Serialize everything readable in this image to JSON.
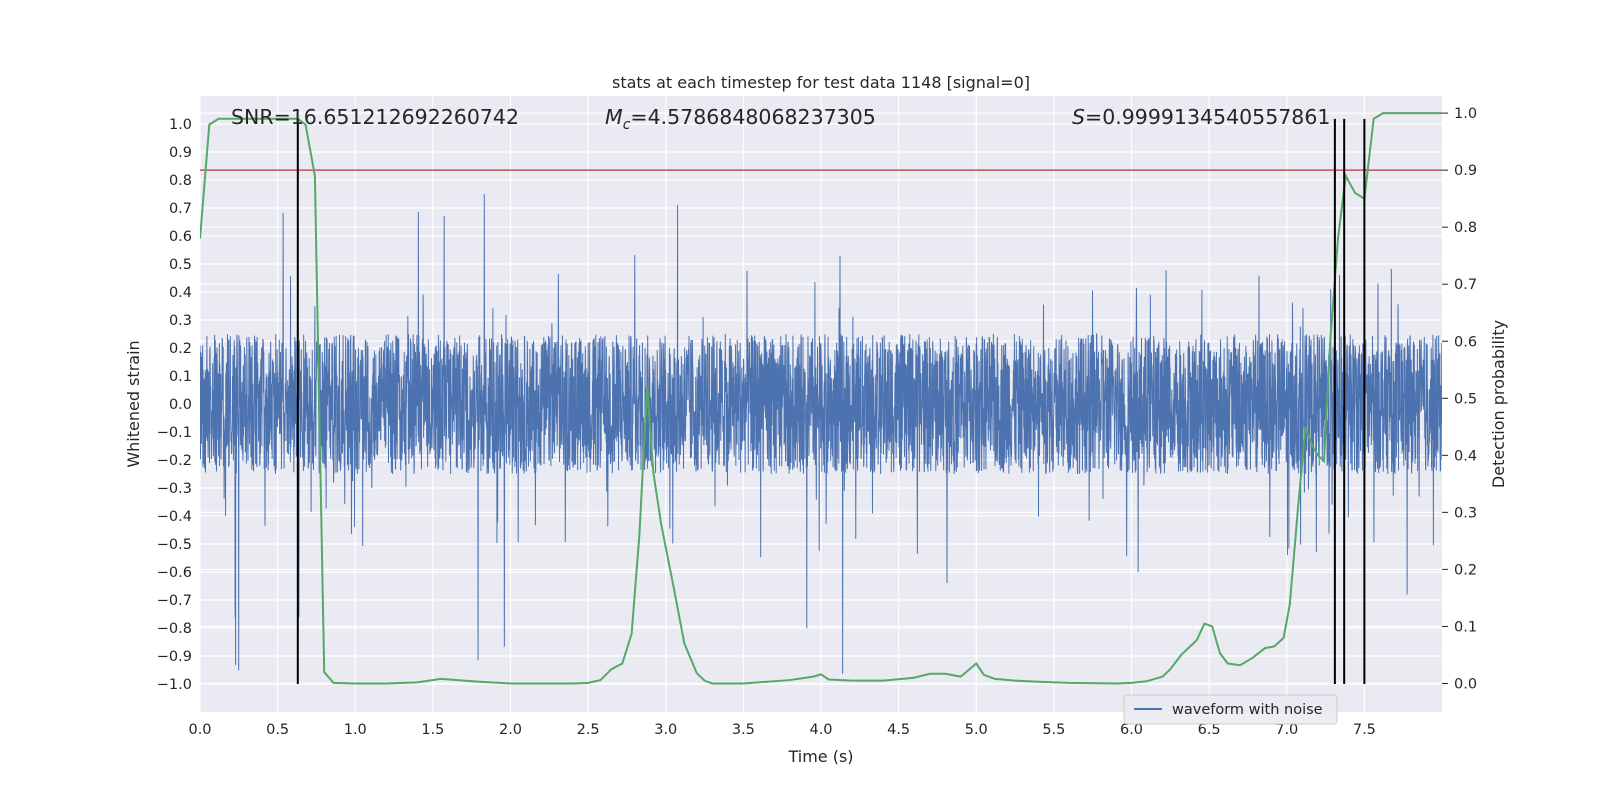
{
  "chart_data": {
    "type": "line",
    "title": "stats at each timestep for test data 1148 [signal=0]",
    "xlabel": "Time (s)",
    "ylabel": "Whitened strain",
    "y2label": "Detection probability",
    "xlim": [
      0,
      8.0
    ],
    "ylim": [
      -1.1,
      1.1
    ],
    "y2lim": [
      -0.05,
      1.03
    ],
    "xticks": [
      "0.0",
      "0.5",
      "1.0",
      "1.5",
      "2.0",
      "2.5",
      "3.0",
      "3.5",
      "4.0",
      "4.5",
      "5.0",
      "5.5",
      "6.0",
      "6.5",
      "7.0",
      "7.5"
    ],
    "yticks": [
      "1.0",
      "0.9",
      "0.8",
      "0.7",
      "0.6",
      "0.5",
      "0.4",
      "0.3",
      "0.2",
      "0.1",
      "0.0",
      "−0.1",
      "−0.2",
      "−0.3",
      "−0.4",
      "−0.5",
      "−0.6",
      "−0.7",
      "−0.8",
      "−0.9",
      "−1.0"
    ],
    "y2ticks": [
      "1.0",
      "0.9",
      "0.8",
      "0.7",
      "0.6",
      "0.5",
      "0.4",
      "0.3",
      "0.2",
      "0.1",
      "0.0"
    ],
    "grid": true,
    "legend": {
      "placement": "lower-right",
      "entries": [
        "waveform with noise"
      ]
    },
    "annotations": {
      "snr": "SNR=16.651212692260742",
      "mc_symbol": "M",
      "mc_sub": "c",
      "mc_value": "=4.5786848068237305",
      "s_symbol": "S",
      "s_value": "=0.9999134540557861"
    },
    "threshold": 0.9,
    "vlines": [
      0.63,
      7.31,
      7.37,
      7.5
    ],
    "vline_ymin": -1.0,
    "vline_ymax": 0.99,
    "strain": {
      "name": "waveform with noise",
      "duration": 8.0,
      "typical_amplitude": 0.25,
      "max_spike": 0.78,
      "min_spike": -1.0
    },
    "probability": {
      "x": [
        0.0,
        0.06,
        0.12,
        0.2,
        0.3,
        0.4,
        0.5,
        0.6,
        0.63,
        0.68,
        0.74,
        0.8,
        0.86,
        1.0,
        1.2,
        1.4,
        1.55,
        1.8,
        2.0,
        2.2,
        2.4,
        2.5,
        2.58,
        2.65,
        2.72,
        2.78,
        2.83,
        2.88,
        2.92,
        2.97,
        3.05,
        3.12,
        3.2,
        3.25,
        3.3,
        3.5,
        3.8,
        3.95,
        4.0,
        4.05,
        4.2,
        4.4,
        4.6,
        4.7,
        4.8,
        4.9,
        5.0,
        5.05,
        5.12,
        5.25,
        5.4,
        5.6,
        5.9,
        6.0,
        6.1,
        6.2,
        6.25,
        6.32,
        6.42,
        6.47,
        6.52,
        6.57,
        6.62,
        6.7,
        6.78,
        6.86,
        6.92,
        6.98,
        7.02,
        7.07,
        7.12,
        7.16,
        7.2,
        7.24,
        7.28,
        7.33,
        7.38,
        7.44,
        7.5,
        7.56,
        7.62,
        7.7,
        8.0
      ],
      "y": [
        0.78,
        0.98,
        0.99,
        0.99,
        0.99,
        0.99,
        0.99,
        0.99,
        0.99,
        0.98,
        0.89,
        0.02,
        0.001,
        0.0,
        0.0,
        0.002,
        0.008,
        0.003,
        0.0,
        0.0,
        0.0,
        0.001,
        0.006,
        0.025,
        0.035,
        0.087,
        0.26,
        0.52,
        0.37,
        0.28,
        0.17,
        0.07,
        0.018,
        0.005,
        0.0,
        0.0,
        0.006,
        0.012,
        0.016,
        0.007,
        0.005,
        0.005,
        0.01,
        0.017,
        0.017,
        0.012,
        0.035,
        0.015,
        0.008,
        0.005,
        0.003,
        0.001,
        0.0,
        0.001,
        0.004,
        0.012,
        0.025,
        0.05,
        0.076,
        0.105,
        0.1,
        0.053,
        0.035,
        0.032,
        0.045,
        0.062,
        0.065,
        0.08,
        0.14,
        0.3,
        0.45,
        0.42,
        0.4,
        0.39,
        0.6,
        0.78,
        0.89,
        0.86,
        0.85,
        0.99,
        1.0,
        1.0,
        1.0
      ]
    },
    "colors": {
      "strain": "#4c72b0",
      "probability": "#55a868",
      "threshold": "#c44e52",
      "vline": "#000000",
      "background": "#eaeaf2",
      "grid": "#ffffff"
    }
  }
}
